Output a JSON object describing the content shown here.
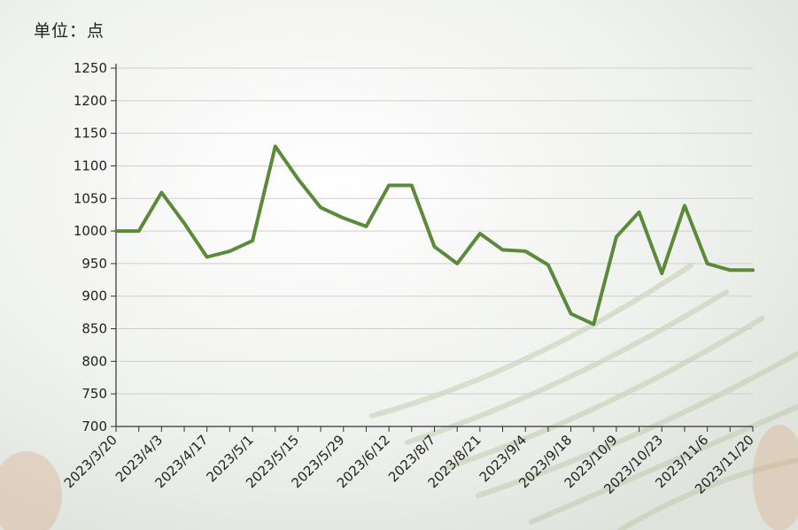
{
  "unit_label": "单位：点",
  "colors": {
    "line": "#5a8a3a",
    "axis": "#333333",
    "grid": "#cfcfcf"
  },
  "chart_data": {
    "type": "line",
    "title": "",
    "xlabel": "",
    "ylabel": "单位：点",
    "ylim": [
      700,
      1250
    ],
    "yticks": [
      700,
      750,
      800,
      850,
      900,
      950,
      1000,
      1050,
      1100,
      1150,
      1200,
      1250
    ],
    "grid": true,
    "x_tick_labels": [
      "2023/3/20",
      "2023/4/3",
      "2023/4/17",
      "2023/5/1",
      "2023/5/15",
      "2023/5/29",
      "2023/6/12",
      "2023/8/7",
      "2023/8/21",
      "2023/9/4",
      "2023/9/18",
      "2023/10/9",
      "2023/10/23",
      "2023/11/6",
      "2023/11/20"
    ],
    "series": [
      {
        "values": [
          1000,
          1000,
          1059,
          1012,
          960,
          969,
          985,
          1130,
          1080,
          1036,
          1020,
          1007,
          1070,
          1070,
          976,
          950,
          996,
          971,
          969,
          948,
          873,
          857,
          991,
          1029,
          935,
          1039,
          950,
          940,
          940
        ]
      }
    ]
  }
}
